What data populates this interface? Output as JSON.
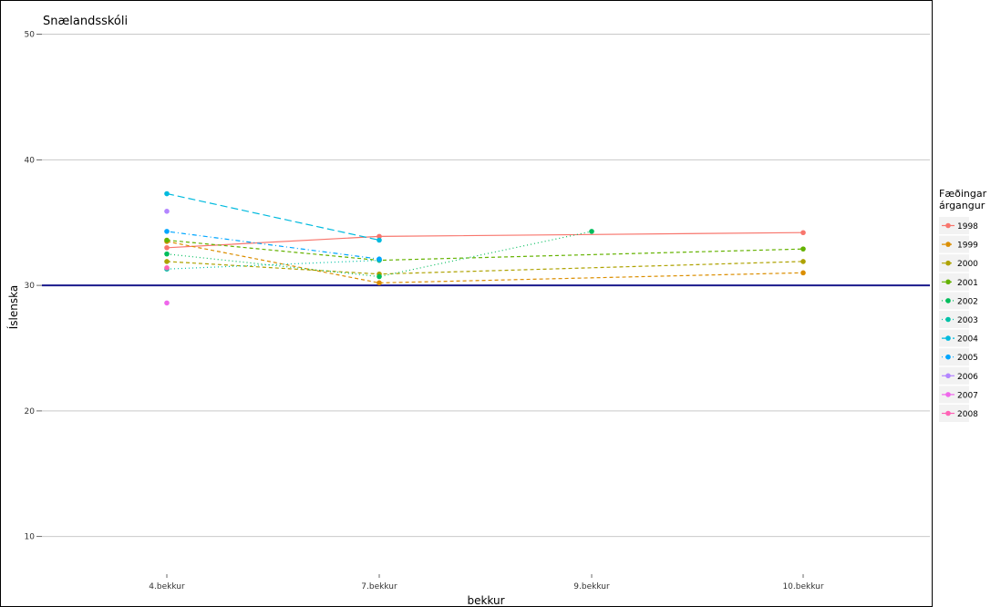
{
  "chart_data": {
    "type": "line",
    "title": "Snælandsskóli",
    "xlabel": "bekkur",
    "ylabel": "Íslenska",
    "categories": [
      "4.bekkur",
      "7.bekkur",
      "9.bekkur",
      "10.bekkur"
    ],
    "ylim": [
      7,
      52
    ],
    "yticks": [
      10,
      20,
      30,
      40,
      50
    ],
    "reference_line": {
      "y": 30,
      "color": "#1a1a8c"
    },
    "grid": "horizontal",
    "legend": {
      "title_line1": "Fæðingar",
      "title_line2": "árgangur",
      "position": "right"
    },
    "series": [
      {
        "name": "1998",
        "color": "#F8766D",
        "dash": "solid",
        "values": [
          33.0,
          33.9,
          null,
          34.2
        ]
      },
      {
        "name": "1999",
        "color": "#DB8E00",
        "dash": "dashed",
        "values": [
          33.5,
          30.2,
          null,
          31.0
        ]
      },
      {
        "name": "2000",
        "color": "#AEA200",
        "dash": "dashed",
        "values": [
          31.9,
          30.9,
          null,
          31.9
        ]
      },
      {
        "name": "2001",
        "color": "#64B200",
        "dash": "dashed",
        "values": [
          33.6,
          32.0,
          null,
          32.9
        ]
      },
      {
        "name": "2002",
        "color": "#00BD5C",
        "dash": "dotted",
        "values": [
          32.5,
          30.7,
          34.3,
          null
        ]
      },
      {
        "name": "2003",
        "color": "#00C1A7",
        "dash": "dotted",
        "values": [
          31.3,
          32.0,
          null,
          null
        ]
      },
      {
        "name": "2004",
        "color": "#00BADE",
        "dash": "longdash",
        "values": [
          37.3,
          33.6,
          null,
          null
        ]
      },
      {
        "name": "2005",
        "color": "#00A6FF",
        "dash": "dotdash",
        "values": [
          34.3,
          32.1,
          null,
          null
        ]
      },
      {
        "name": "2006",
        "color": "#B385FF",
        "dash": "solid",
        "values": [
          35.9,
          null,
          null,
          null
        ]
      },
      {
        "name": "2007",
        "color": "#EF67EB",
        "dash": "solid",
        "values": [
          28.6,
          null,
          null,
          null
        ]
      },
      {
        "name": "2008",
        "color": "#FF63B6",
        "dash": "solid",
        "values": [
          31.4,
          null,
          null,
          null
        ]
      }
    ]
  }
}
